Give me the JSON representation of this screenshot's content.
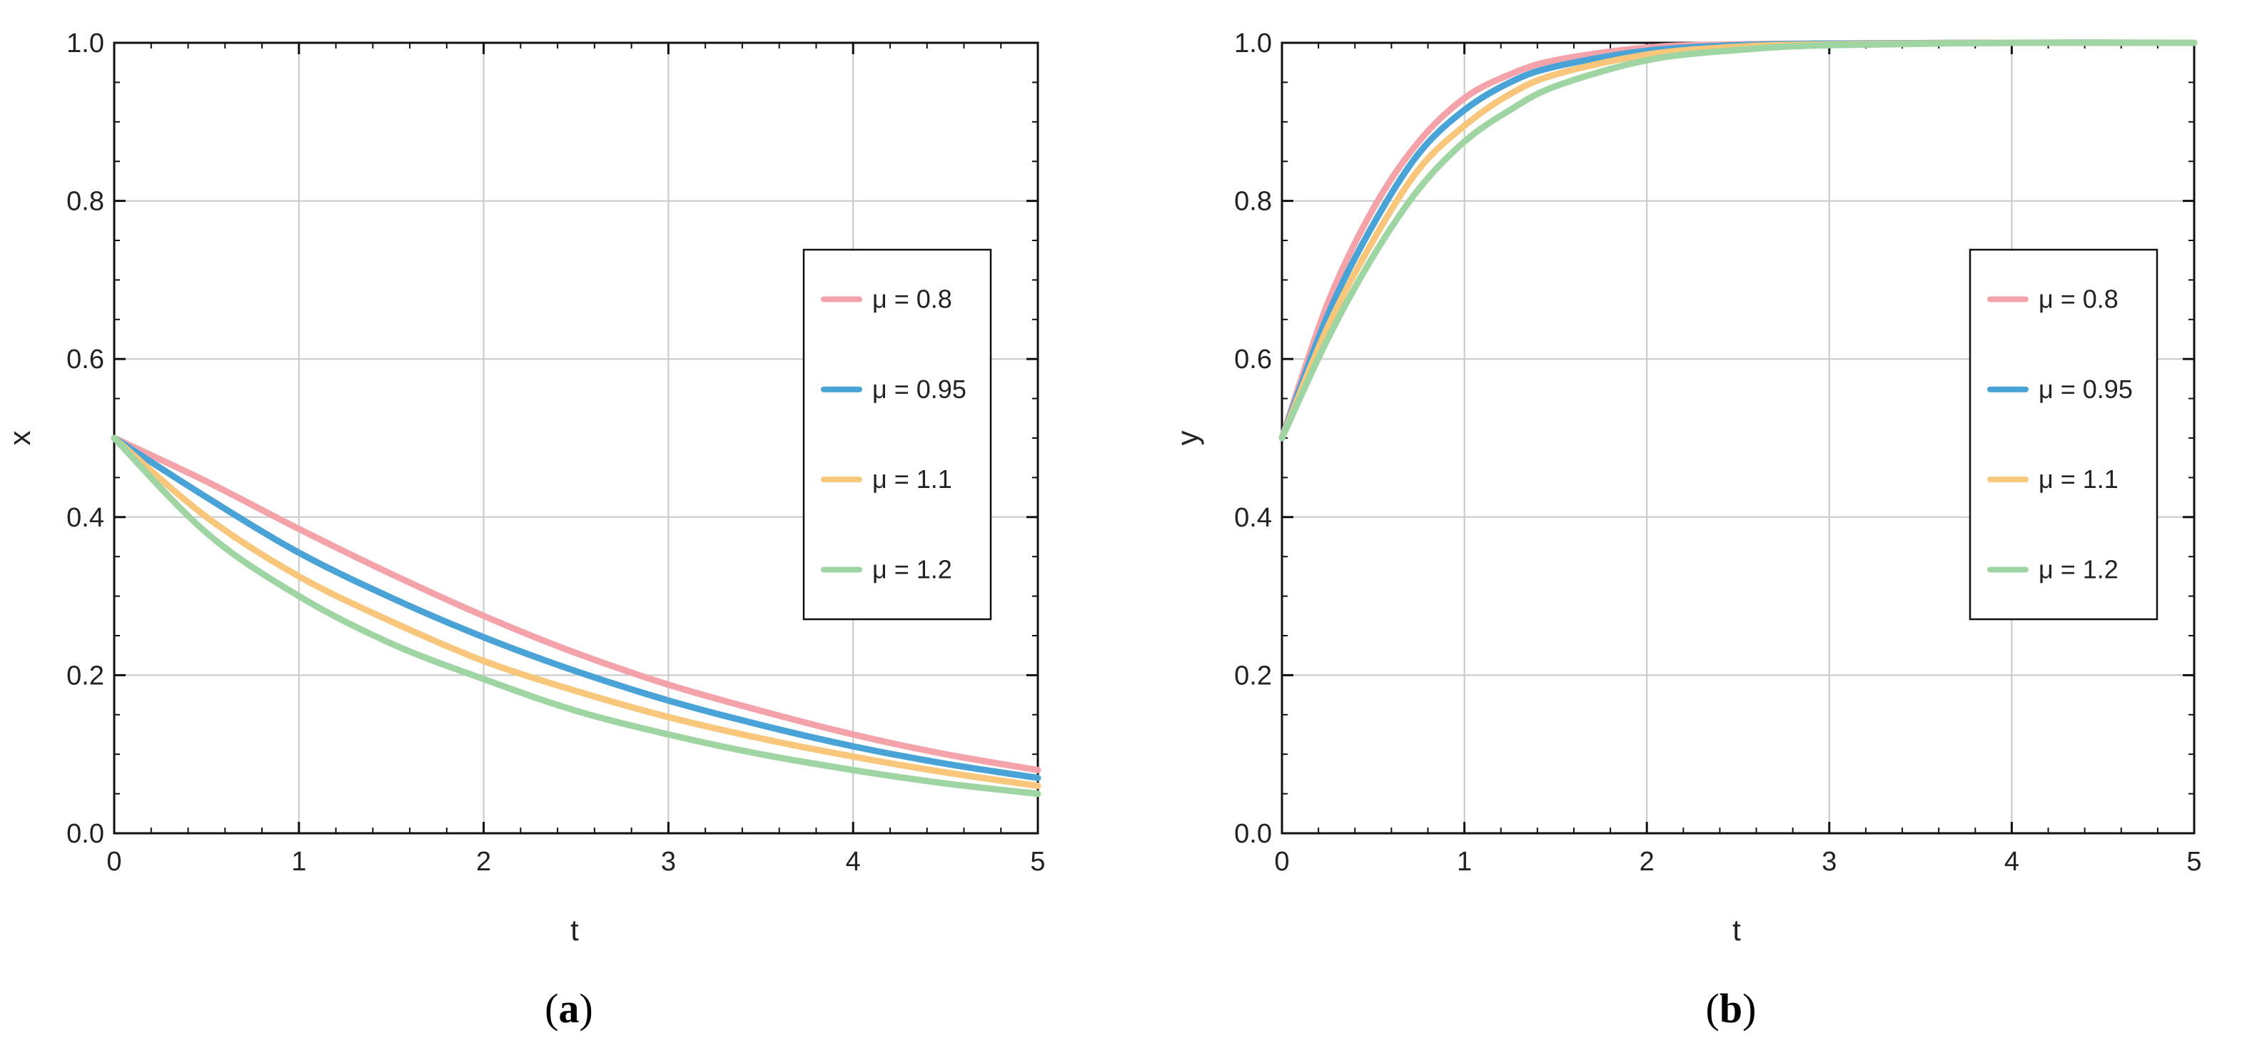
{
  "chart_data": [
    {
      "type": "line",
      "caption": "(a)",
      "caption_letter": "a",
      "xlabel": "t",
      "ylabel": "x",
      "xlim": [
        0,
        5
      ],
      "ylim": [
        0,
        1.0
      ],
      "xticks": [
        "0",
        "1",
        "2",
        "3",
        "4",
        "5"
      ],
      "yticks": [
        "0.0",
        "0.2",
        "0.4",
        "0.6",
        "0.8",
        "1.0"
      ],
      "grid": true,
      "legend_position": "right",
      "x": [
        0,
        0.5,
        1,
        1.5,
        2,
        2.5,
        3,
        3.5,
        4,
        4.5,
        5
      ],
      "series": [
        {
          "name": "μ = 0.8",
          "color": "#f5a3ab",
          "values": [
            0.5,
            0.445,
            0.385,
            0.328,
            0.275,
            0.228,
            0.188,
            0.155,
            0.125,
            0.1,
            0.08
          ]
        },
        {
          "name": "μ = 0.95",
          "color": "#4aa3d6",
          "values": [
            0.5,
            0.425,
            0.355,
            0.298,
            0.248,
            0.205,
            0.168,
            0.137,
            0.11,
            0.088,
            0.07
          ]
        },
        {
          "name": "μ = 1.1",
          "color": "#f9c77b",
          "values": [
            0.5,
            0.4,
            0.325,
            0.268,
            0.218,
            0.18,
            0.147,
            0.12,
            0.097,
            0.077,
            0.06
          ]
        },
        {
          "name": "μ = 1.2",
          "color": "#9fd4a3",
          "values": [
            0.5,
            0.38,
            0.3,
            0.24,
            0.195,
            0.155,
            0.125,
            0.1,
            0.08,
            0.063,
            0.05
          ]
        }
      ]
    },
    {
      "type": "line",
      "caption": "(b)",
      "caption_letter": "b",
      "xlabel": "t",
      "ylabel": "y",
      "xlim": [
        0,
        5
      ],
      "ylim": [
        0,
        1.0
      ],
      "xticks": [
        "0",
        "1",
        "2",
        "3",
        "4",
        "5"
      ],
      "yticks": [
        "0.0",
        "0.2",
        "0.4",
        "0.6",
        "0.8",
        "1.0"
      ],
      "grid": true,
      "legend_position": "right",
      "x": [
        0,
        0.25,
        0.5,
        0.75,
        1,
        1.25,
        1.5,
        2,
        2.5,
        3,
        4,
        5
      ],
      "series": [
        {
          "name": "μ = 0.8",
          "color": "#f5a3ab",
          "values": [
            0.5,
            0.67,
            0.79,
            0.875,
            0.93,
            0.96,
            0.978,
            0.994,
            0.998,
            0.999,
            1.0,
            1.0
          ]
        },
        {
          "name": "μ = 0.95",
          "color": "#4aa3d6",
          "values": [
            0.5,
            0.655,
            0.77,
            0.86,
            0.915,
            0.95,
            0.97,
            0.99,
            0.997,
            0.999,
            1.0,
            1.0
          ]
        },
        {
          "name": "μ = 1.1",
          "color": "#f9c77b",
          "values": [
            0.5,
            0.64,
            0.75,
            0.84,
            0.895,
            0.935,
            0.96,
            0.985,
            0.995,
            0.998,
            1.0,
            1.0
          ]
        },
        {
          "name": "μ = 1.2",
          "color": "#9fd4a3",
          "values": [
            0.5,
            0.625,
            0.73,
            0.815,
            0.875,
            0.915,
            0.945,
            0.978,
            0.991,
            0.997,
            1.0,
            1.0
          ]
        }
      ]
    }
  ]
}
